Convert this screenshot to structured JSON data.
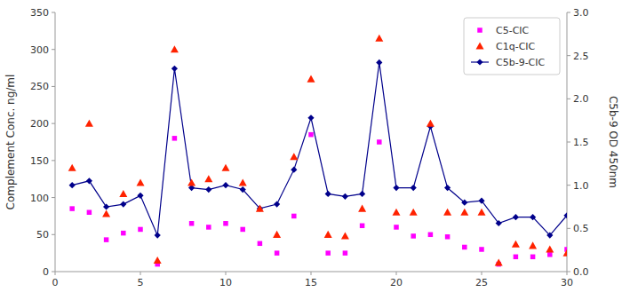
{
  "chart_data": {
    "type": "scatter",
    "x": [
      1,
      2,
      3,
      4,
      5,
      6,
      7,
      8,
      9,
      10,
      11,
      12,
      13,
      14,
      15,
      16,
      17,
      18,
      19,
      20,
      21,
      22,
      23,
      24,
      25,
      26,
      27,
      28,
      29,
      30
    ],
    "series": [
      {
        "name": "C5-CIC",
        "type": "scatter",
        "marker": "square",
        "color": "#ff00ff",
        "values": [
          85,
          80,
          43,
          52,
          57,
          10,
          180,
          65,
          60,
          65,
          57,
          38,
          25,
          75,
          185,
          25,
          25,
          62,
          175,
          60,
          48,
          50,
          47,
          33,
          30,
          10,
          20,
          20,
          23,
          30
        ]
      },
      {
        "name": "C1q-CIC",
        "type": "scatter",
        "marker": "triangle",
        "color": "#ff2200",
        "values": [
          140,
          200,
          78,
          105,
          120,
          15,
          300,
          120,
          125,
          140,
          120,
          85,
          50,
          155,
          260,
          50,
          48,
          85,
          315,
          80,
          80,
          200,
          80,
          80,
          80,
          12,
          37,
          35,
          30,
          25
        ]
      },
      {
        "name": "C5b-9-CIC",
        "type": "line",
        "marker": "diamond",
        "color": "#00008b",
        "axis": "y2",
        "values": [
          1.0,
          1.05,
          0.75,
          0.78,
          0.88,
          0.42,
          2.35,
          0.97,
          0.95,
          1.0,
          0.95,
          0.73,
          0.78,
          1.18,
          1.78,
          0.9,
          0.87,
          0.9,
          2.42,
          0.97,
          0.97,
          1.68,
          0.97,
          0.8,
          0.82,
          0.56,
          0.63,
          0.63,
          0.42,
          0.65
        ]
      }
    ],
    "ylabel": "Complement Conc. ng/ml",
    "y2label": "C5b-9 OD 450nm",
    "xlim": [
      0,
      30
    ],
    "xticks": [
      0,
      5,
      10,
      15,
      20,
      25,
      30
    ],
    "ylim": [
      0,
      350
    ],
    "yticks": [
      0,
      50,
      100,
      150,
      200,
      250,
      300,
      350
    ],
    "y2lim": [
      0,
      3
    ],
    "y2ticks": [
      {
        "value": 0,
        "label": "0.0"
      },
      0.5,
      {
        "value": 1,
        "label": "1.0"
      },
      1.5,
      {
        "value": 2,
        "label": "2.0"
      },
      2.5,
      {
        "value": 3,
        "label": "3.0"
      }
    ],
    "legend": "upper right",
    "grid": false
  }
}
